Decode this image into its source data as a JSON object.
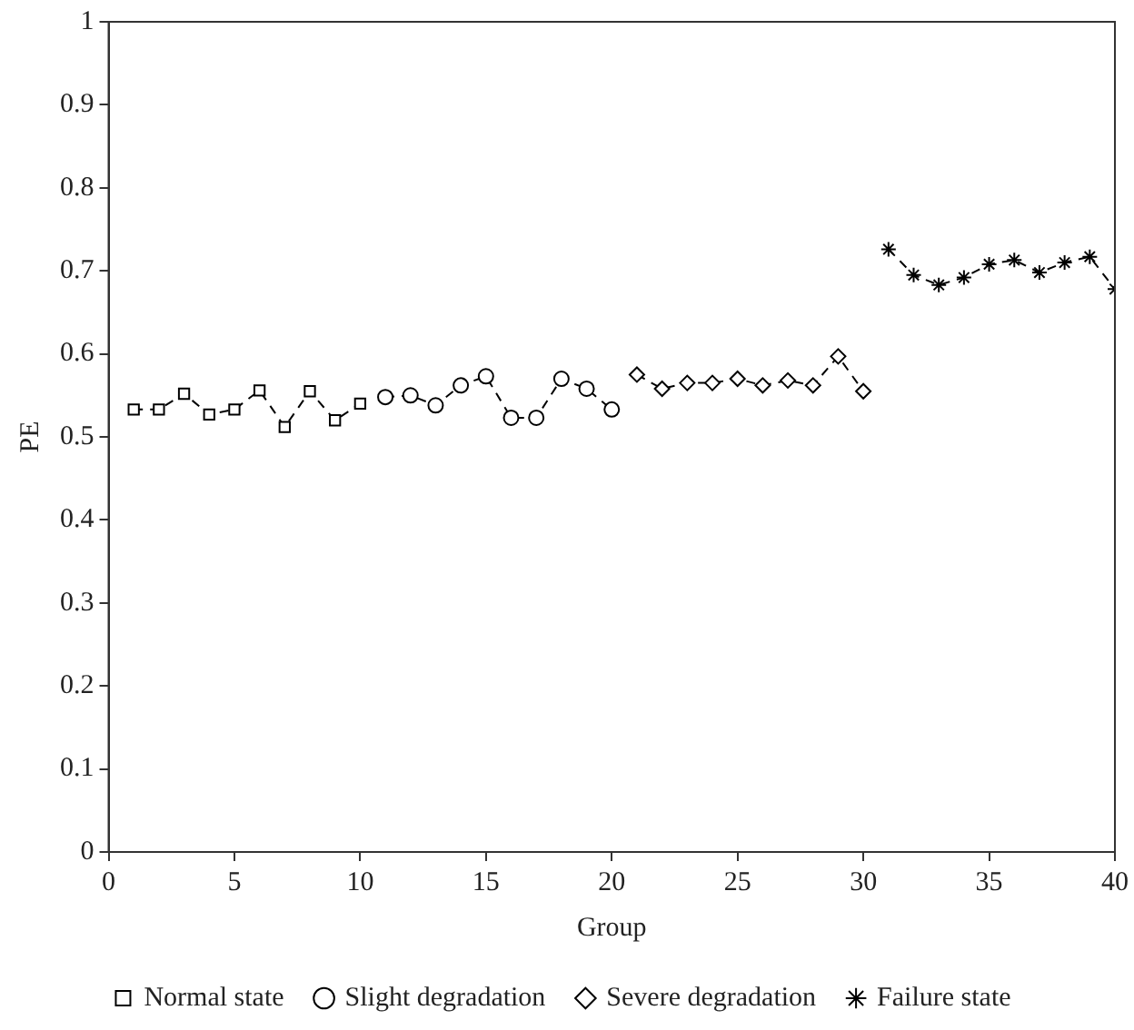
{
  "chart_data": {
    "type": "line",
    "xlabel": "Group",
    "ylabel": "PE",
    "xlim": [
      0,
      40
    ],
    "xticks": [
      0,
      5,
      10,
      15,
      20,
      25,
      30,
      35,
      40
    ],
    "ylim": [
      0,
      1
    ],
    "yticks": [
      0,
      0.1,
      0.2,
      0.3,
      0.4,
      0.5,
      0.6,
      0.7,
      0.8,
      0.9,
      1
    ],
    "grid": false,
    "legend": "bottom",
    "line_style": "dashed",
    "series": [
      {
        "name": "Normal state",
        "color": "#000000",
        "marker": "square",
        "x": [
          1,
          2,
          3,
          4,
          5,
          6,
          7,
          8,
          9,
          10
        ],
        "values": [
          0.533,
          0.533,
          0.552,
          0.527,
          0.533,
          0.556,
          0.512,
          0.555,
          0.52,
          0.54
        ]
      },
      {
        "name": "Slight degradation",
        "color": "#000000",
        "marker": "circle",
        "x": [
          11,
          12,
          13,
          14,
          15,
          16,
          17,
          18,
          19,
          20
        ],
        "values": [
          0.548,
          0.55,
          0.538,
          0.562,
          0.573,
          0.523,
          0.523,
          0.57,
          0.558,
          0.533
        ]
      },
      {
        "name": "Severe degradation",
        "color": "#000000",
        "marker": "diamond",
        "x": [
          21,
          22,
          23,
          24,
          25,
          26,
          27,
          28,
          29,
          30
        ],
        "values": [
          0.575,
          0.558,
          0.565,
          0.565,
          0.57,
          0.562,
          0.568,
          0.562,
          0.597,
          0.555
        ]
      },
      {
        "name": "Failure state",
        "color": "#000000",
        "marker": "cross",
        "x": [
          31,
          32,
          33,
          34,
          35,
          36,
          37,
          38,
          39,
          40
        ],
        "values": [
          0.726,
          0.695,
          0.683,
          0.692,
          0.708,
          0.713,
          0.698,
          0.71,
          0.717,
          0.678
        ]
      }
    ]
  }
}
